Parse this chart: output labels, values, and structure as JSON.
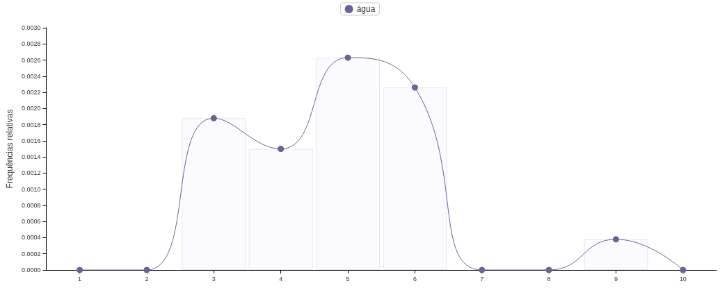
{
  "chart_data": {
    "type": "line",
    "ylabel": "Frequências relativas",
    "x": [
      1,
      2,
      3,
      4,
      5,
      6,
      7,
      8,
      9,
      10
    ],
    "series": [
      {
        "type": "bar",
        "color": "#fafaff",
        "values": [
          null,
          null,
          0.00188,
          0.0015,
          0.00263,
          0.00226,
          null,
          null,
          0.00038,
          null
        ]
      },
      {
        "name": "água",
        "color": "#6b6394",
        "values": [
          0,
          0,
          0.00188,
          0.0015,
          0.00263,
          0.00226,
          0,
          0,
          0.00038,
          0
        ]
      }
    ],
    "xlim": [
      0.5,
      10.5
    ],
    "xticks": [
      1,
      2,
      3,
      4,
      5,
      6,
      7,
      8,
      9,
      10
    ],
    "ylim": [
      0,
      0.003
    ],
    "yticks": [
      {
        "value": 0,
        "label": "0.0000"
      },
      {
        "value": 0.0002,
        "label": "0.0002"
      },
      {
        "value": 0.0004,
        "label": "0.0004"
      },
      {
        "value": 0.0006,
        "label": "0.0006"
      },
      {
        "value": 0.0008,
        "label": "0.0008"
      },
      {
        "value": 0.001,
        "label": "0.0010"
      },
      {
        "value": 0.0012,
        "label": "0.0012"
      },
      {
        "value": 0.0014,
        "label": "0.0014"
      },
      {
        "value": 0.0016,
        "label": "0.0016"
      },
      {
        "value": 0.0018,
        "label": "0.0018"
      },
      {
        "value": 0.002,
        "label": "0.0020"
      },
      {
        "value": 0.0022,
        "label": "0.0022"
      },
      {
        "value": 0.0024,
        "label": "0.0024"
      },
      {
        "value": 0.0026,
        "label": "0.0026"
      },
      {
        "value": 0.0028,
        "label": "0.0028"
      },
      {
        "value": 0.003,
        "label": "0.0030"
      }
    ],
    "grid": false,
    "legend": "top",
    "marker": "circle",
    "line_style": "solid"
  }
}
